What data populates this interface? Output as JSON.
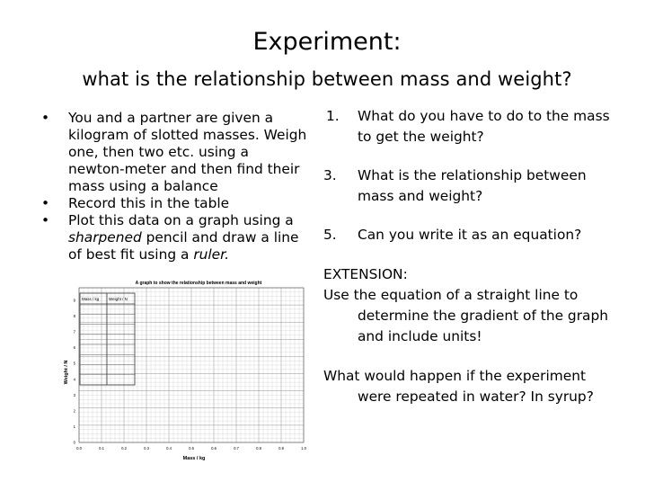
{
  "title": "Experiment:",
  "subtitle": "what is the relationship  between mass and weight?",
  "bullets": [
    {
      "lines": [
        "You and a partner are given a",
        "kilogram of slotted masses. Weigh",
        "one, then two etc.  using a",
        "newton-meter and then find their",
        "mass using a balance"
      ]
    },
    {
      "lines": [
        "Record this in the table"
      ]
    },
    {
      "line1": "Plot this data on a graph using a",
      "line2_em": "sharpened",
      "line2_rest": " pencil and draw a line",
      "line3_pre": "of best fit using a ",
      "line3_em": "ruler."
    }
  ],
  "questions": [
    {
      "num": "1.",
      "lines": [
        "What do you have to do to the mass",
        "to get the weight?"
      ]
    },
    {
      "num": "3.",
      "lines": [
        "What is the relationship between",
        "mass and weight?"
      ]
    },
    {
      "num": "5.",
      "lines": [
        "Can you write it as an equation?"
      ]
    }
  ],
  "extension_label": "EXTENSION:",
  "extension_lines": [
    "Use the equation of a straight line to",
    "determine the gradient of the graph",
    "and include units!"
  ],
  "followup_lines": [
    "What would happen if the experiment",
    "were repeated in water? In syrup?"
  ],
  "graph": {
    "title": "A graph to show the relationship between mass and weight",
    "xlabel": "Mass / kg",
    "ylabel": "Weight / N",
    "xticks": [
      "0.0",
      "0.1",
      "0.2",
      "0.3",
      "0.4",
      "0.5",
      "0.6",
      "0.7",
      "0.8",
      "0.9",
      "1.0"
    ],
    "yticks": [
      "0",
      "1",
      "2",
      "3",
      "4",
      "5",
      "6",
      "7",
      "8",
      "9"
    ],
    "table_headers": [
      "Mass / kg",
      "Weight / N"
    ],
    "grid_color": "#b8b8b8"
  }
}
